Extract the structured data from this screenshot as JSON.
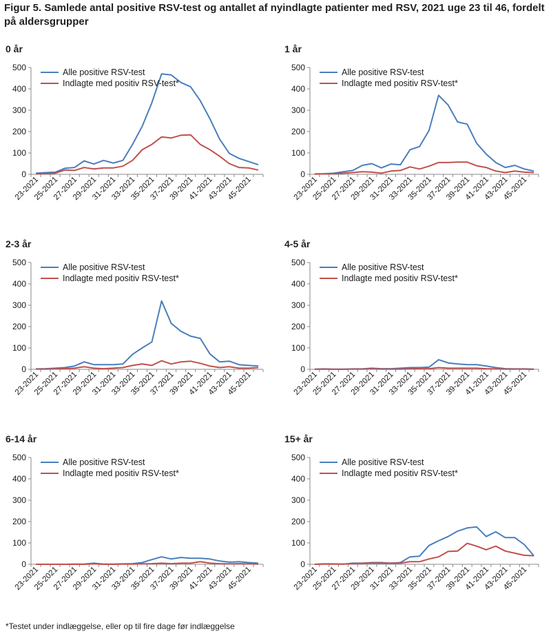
{
  "figure": {
    "title": "Figur 5. Samlede antal positive  RSV-test  og antallet af nyindlagte patienter med RSV, 2021 uge 23 til 46, fordelt på aldersgrupper",
    "footnote": "*Testet under indlæggelse, eller op til fire dage før indlæggelse"
  },
  "colors": {
    "total": "#4a7ebb",
    "admitted": "#c0504d",
    "axis": "#888888",
    "text": "#1a1a1a"
  },
  "chart_data": [
    {
      "type": "line",
      "title": "0 år",
      "categories": [
        "23-2021",
        "24-2021",
        "25-2021",
        "26-2021",
        "27-2021",
        "28-2021",
        "29-2021",
        "30-2021",
        "31-2021",
        "32-2021",
        "33-2021",
        "34-2021",
        "35-2021",
        "36-2021",
        "37-2021",
        "38-2021",
        "39-2021",
        "40-2021",
        "41-2021",
        "42-2021",
        "43-2021",
        "44-2021",
        "45-2021",
        "46-2021"
      ],
      "tick_labels": [
        "23-2021",
        "25-2021",
        "27-2021",
        "29-2021",
        "31-2021",
        "33-2021",
        "35-2021",
        "37-2021",
        "39-2021",
        "41-2021",
        "43-2021",
        "45-2021"
      ],
      "y_ticks": [
        "0",
        "100",
        "200",
        "300",
        "400",
        "500"
      ],
      "ylim": [
        0,
        500
      ],
      "series": [
        {
          "name": "Alle positive RSV-test",
          "values": [
            5,
            8,
            10,
            28,
            32,
            63,
            48,
            65,
            53,
            65,
            140,
            225,
            335,
            470,
            465,
            430,
            410,
            345,
            260,
            165,
            98,
            75,
            60,
            45
          ]
        },
        {
          "name": "Indlagte med positiv RSV-test*",
          "values": [
            2,
            3,
            5,
            20,
            18,
            32,
            25,
            30,
            30,
            38,
            65,
            115,
            140,
            175,
            170,
            183,
            185,
            140,
            115,
            85,
            50,
            32,
            30,
            20
          ]
        }
      ]
    },
    {
      "type": "line",
      "title": "1 år",
      "categories": [
        "23-2021",
        "24-2021",
        "25-2021",
        "26-2021",
        "27-2021",
        "28-2021",
        "29-2021",
        "30-2021",
        "31-2021",
        "32-2021",
        "33-2021",
        "34-2021",
        "35-2021",
        "36-2021",
        "37-2021",
        "38-2021",
        "39-2021",
        "40-2021",
        "41-2021",
        "42-2021",
        "43-2021",
        "44-2021",
        "45-2021",
        "46-2021"
      ],
      "tick_labels": [
        "23-2021",
        "25-2021",
        "27-2021",
        "29-2021",
        "31-2021",
        "33-2021",
        "35-2021",
        "37-2021",
        "39-2021",
        "41-2021",
        "43-2021",
        "45-2021"
      ],
      "y_ticks": [
        "0",
        "100",
        "200",
        "300",
        "400",
        "500"
      ],
      "ylim": [
        0,
        500
      ],
      "series": [
        {
          "name": "Alle positive RSV-test",
          "values": [
            2,
            3,
            5,
            12,
            18,
            42,
            50,
            30,
            48,
            45,
            115,
            130,
            205,
            370,
            325,
            245,
            235,
            145,
            95,
            55,
            32,
            42,
            25,
            15
          ]
        },
        {
          "name": "Indlagte med positiv RSV-test*",
          "values": [
            1,
            2,
            3,
            5,
            8,
            12,
            10,
            5,
            15,
            18,
            35,
            25,
            38,
            55,
            55,
            57,
            57,
            40,
            32,
            15,
            8,
            15,
            10,
            8
          ]
        }
      ]
    },
    {
      "type": "line",
      "title": "2-3 år",
      "categories": [
        "23-2021",
        "24-2021",
        "25-2021",
        "26-2021",
        "27-2021",
        "28-2021",
        "29-2021",
        "30-2021",
        "31-2021",
        "32-2021",
        "33-2021",
        "34-2021",
        "35-2021",
        "36-2021",
        "37-2021",
        "38-2021",
        "39-2021",
        "40-2021",
        "41-2021",
        "42-2021",
        "43-2021",
        "44-2021",
        "45-2021",
        "46-2021"
      ],
      "tick_labels": [
        "23-2021",
        "25-2021",
        "27-2021",
        "29-2021",
        "31-2021",
        "33-2021",
        "35-2021",
        "37-2021",
        "39-2021",
        "41-2021",
        "43-2021",
        "45-2021"
      ],
      "y_ticks": [
        "0",
        "100",
        "200",
        "300",
        "400",
        "500"
      ],
      "ylim": [
        0,
        500
      ],
      "series": [
        {
          "name": "Alle positive RSV-test",
          "values": [
            2,
            3,
            5,
            8,
            15,
            35,
            22,
            22,
            22,
            25,
            70,
            100,
            128,
            320,
            215,
            178,
            155,
            145,
            72,
            35,
            38,
            22,
            18,
            15
          ]
        },
        {
          "name": "Indlagte med positiv RSV-test*",
          "values": [
            1,
            1,
            2,
            3,
            5,
            12,
            5,
            3,
            5,
            8,
            18,
            25,
            18,
            40,
            25,
            35,
            38,
            28,
            15,
            8,
            12,
            5,
            5,
            8
          ]
        }
      ]
    },
    {
      "type": "line",
      "title": "4-5 år",
      "categories": [
        "23-2021",
        "24-2021",
        "25-2021",
        "26-2021",
        "27-2021",
        "28-2021",
        "29-2021",
        "30-2021",
        "31-2021",
        "32-2021",
        "33-2021",
        "34-2021",
        "35-2021",
        "36-2021",
        "37-2021",
        "38-2021",
        "39-2021",
        "40-2021",
        "41-2021",
        "42-2021",
        "43-2021",
        "44-2021",
        "45-2021",
        "46-2021"
      ],
      "tick_labels": [
        "23-2021",
        "25-2021",
        "27-2021",
        "29-2021",
        "31-2021",
        "33-2021",
        "35-2021",
        "37-2021",
        "39-2021",
        "41-2021",
        "43-2021",
        "45-2021"
      ],
      "y_ticks": [
        "0",
        "100",
        "200",
        "300",
        "400",
        "500"
      ],
      "ylim": [
        0,
        500
      ],
      "series": [
        {
          "name": "Alle positive RSV-test",
          "values": [
            1,
            2,
            1,
            1,
            2,
            2,
            5,
            3,
            3,
            5,
            8,
            8,
            10,
            45,
            30,
            25,
            22,
            22,
            15,
            8,
            3,
            2,
            2,
            1
          ]
        },
        {
          "name": "Indlagte med positiv RSV-test*",
          "values": [
            0,
            1,
            0,
            0,
            1,
            1,
            2,
            1,
            1,
            1,
            2,
            3,
            3,
            8,
            5,
            5,
            5,
            5,
            3,
            2,
            1,
            1,
            1,
            0
          ]
        }
      ]
    },
    {
      "type": "line",
      "title": "6-14 år",
      "categories": [
        "23-2021",
        "24-2021",
        "25-2021",
        "26-2021",
        "27-2021",
        "28-2021",
        "29-2021",
        "30-2021",
        "31-2021",
        "32-2021",
        "33-2021",
        "34-2021",
        "35-2021",
        "36-2021",
        "37-2021",
        "38-2021",
        "39-2021",
        "40-2021",
        "41-2021",
        "42-2021",
        "43-2021",
        "44-2021",
        "45-2021",
        "46-2021"
      ],
      "tick_labels": [
        "23-2021",
        "25-2021",
        "27-2021",
        "29-2021",
        "31-2021",
        "33-2021",
        "35-2021",
        "37-2021",
        "39-2021",
        "41-2021",
        "43-2021",
        "45-2021"
      ],
      "y_ticks": [
        "0",
        "100",
        "200",
        "300",
        "400",
        "500"
      ],
      "ylim": [
        0,
        500
      ],
      "series": [
        {
          "name": "Alle positive RSV-test",
          "values": [
            0,
            0,
            0,
            0,
            1,
            1,
            5,
            1,
            1,
            2,
            3,
            8,
            22,
            35,
            25,
            32,
            28,
            28,
            25,
            15,
            10,
            12,
            8,
            5
          ]
        },
        {
          "name": "Indlagte med positiv RSV-test*",
          "values": [
            0,
            0,
            0,
            0,
            0,
            0,
            2,
            0,
            0,
            1,
            1,
            2,
            3,
            5,
            3,
            5,
            5,
            12,
            5,
            3,
            2,
            3,
            2,
            1
          ]
        }
      ]
    },
    {
      "type": "line",
      "title": "15+ år",
      "categories": [
        "23-2021",
        "24-2021",
        "25-2021",
        "26-2021",
        "27-2021",
        "28-2021",
        "29-2021",
        "30-2021",
        "31-2021",
        "32-2021",
        "33-2021",
        "34-2021",
        "35-2021",
        "36-2021",
        "37-2021",
        "38-2021",
        "39-2021",
        "40-2021",
        "41-2021",
        "42-2021",
        "43-2021",
        "44-2021",
        "45-2021",
        "46-2021"
      ],
      "tick_labels": [
        "23-2021",
        "25-2021",
        "27-2021",
        "29-2021",
        "31-2021",
        "33-2021",
        "35-2021",
        "37-2021",
        "39-2021",
        "41-2021",
        "43-2021",
        "45-2021"
      ],
      "y_ticks": [
        "0",
        "100",
        "200",
        "300",
        "400",
        "500"
      ],
      "ylim": [
        0,
        500
      ],
      "series": [
        {
          "name": "Alle positive RSV-test",
          "values": [
            0,
            2,
            2,
            1,
            5,
            5,
            8,
            8,
            5,
            8,
            35,
            38,
            88,
            110,
            130,
            155,
            170,
            175,
            130,
            152,
            125,
            125,
            92,
            40
          ]
        },
        {
          "name": "Indlagte med positiv RSV-test*",
          "values": [
            0,
            1,
            1,
            1,
            3,
            5,
            5,
            5,
            5,
            5,
            12,
            12,
            25,
            35,
            60,
            62,
            98,
            85,
            68,
            85,
            62,
            52,
            42,
            40
          ]
        }
      ]
    }
  ]
}
